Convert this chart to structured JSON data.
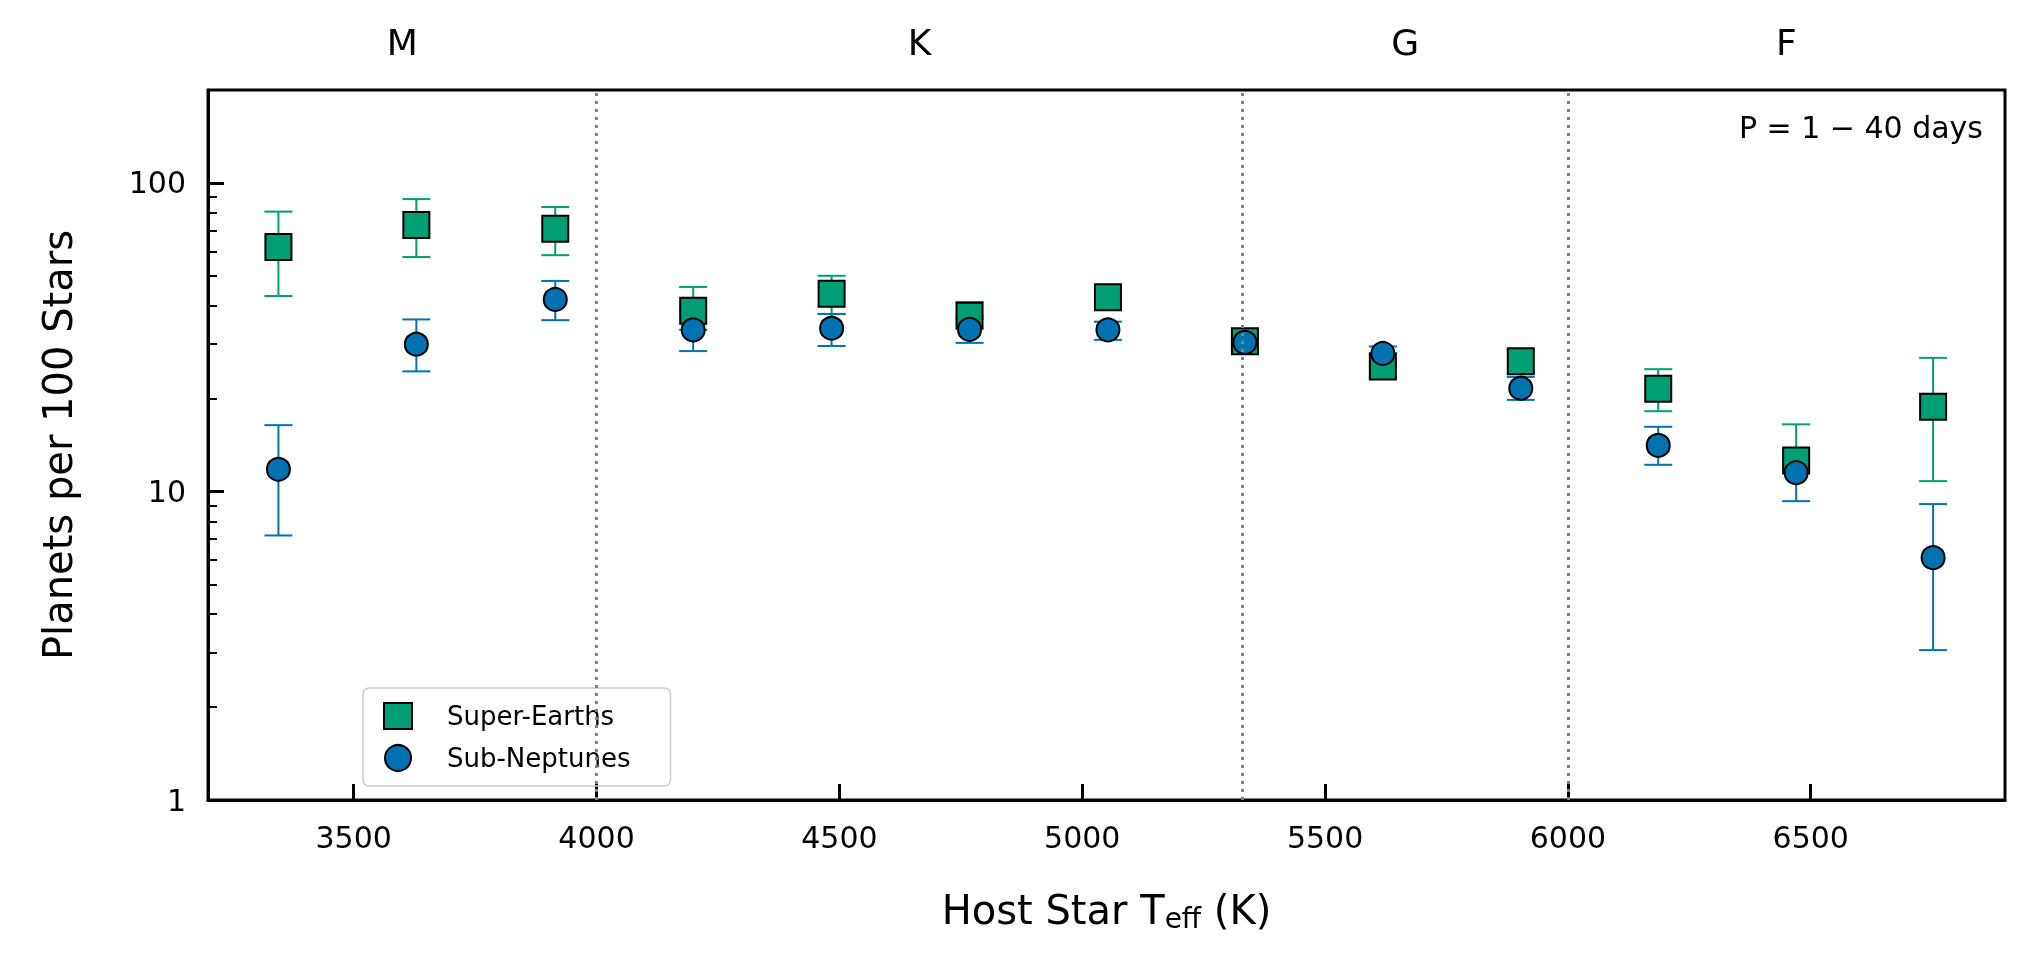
{
  "chart_data": {
    "type": "scatter",
    "xlabel": "Host Star T$_{eff}$ (K)",
    "ylabel": "Planets per 100 Stars",
    "x": [
      3345,
      3629,
      3915,
      4199,
      4484,
      4768,
      5053,
      5335,
      5619,
      5903,
      6186,
      6470,
      6752
    ],
    "series": [
      {
        "name": "Super-Earths",
        "color": "#009e73",
        "marker": "square",
        "values": [
          62,
          73,
          71,
          38.5,
          43.7,
          37.1,
          42.6,
          30.7,
          25.4,
          26.4,
          21.5,
          12.6,
          18.8
        ],
        "errors": [
          [
            43,
            80.7
          ],
          [
            57.5,
            88.6
          ],
          [
            58.3,
            83.5
          ],
          [
            38.5,
            46
          ],
          [
            37.6,
            50
          ],
          [
            37.1,
            41.1
          ],
          [
            39.3,
            46
          ],
          null,
          [
            23.5,
            25.4
          ],
          [
            24.2,
            28.8
          ],
          [
            18.2,
            24.9
          ],
          [
            12.6,
            16.5
          ],
          [
            10.8,
            27.1
          ]
        ]
      },
      {
        "name": "Sub-Neptunes",
        "color": "#0072b2",
        "marker": "circle",
        "values": [
          11.8,
          30,
          41.9,
          33.4,
          33.8,
          33.5,
          33.4,
          30.4,
          28,
          21.6,
          14.1,
          11.5,
          6.1
        ],
        "errors": [
          [
            7.2,
            16.4
          ],
          [
            24.5,
            36.1
          ],
          [
            35.9,
            48.1
          ],
          [
            28.5,
            33.4
          ],
          [
            29.6,
            37.6
          ],
          [
            30.3,
            36.3
          ],
          [
            31,
            35.5
          ],
          null,
          [
            28,
            29.5
          ],
          [
            19.8,
            23.5
          ],
          [
            12.2,
            16.2
          ],
          [
            9.3,
            13.5
          ],
          [
            3.06,
            9.1
          ]
        ]
      }
    ],
    "xlim": [
      3200,
      6900
    ],
    "xticks": [
      3500,
      4000,
      4500,
      5000,
      5500,
      6000,
      6500
    ],
    "ylim": [
      1,
      200
    ],
    "yticks": [
      1,
      10,
      100
    ],
    "log": "y",
    "grid": false,
    "legend": "bottom left",
    "ref_lines": [
      {
        "axis": "x",
        "value": 4000,
        "color": "#808080",
        "line_style": "dotted"
      },
      {
        "axis": "x",
        "value": 5330,
        "color": "#808080",
        "line_style": "dotted"
      },
      {
        "axis": "x",
        "value": 6000,
        "color": "#808080",
        "line_style": "dotted"
      }
    ],
    "annotations": [
      "M",
      "K",
      "G",
      "F",
      "P = 1 − 40 days"
    ]
  }
}
